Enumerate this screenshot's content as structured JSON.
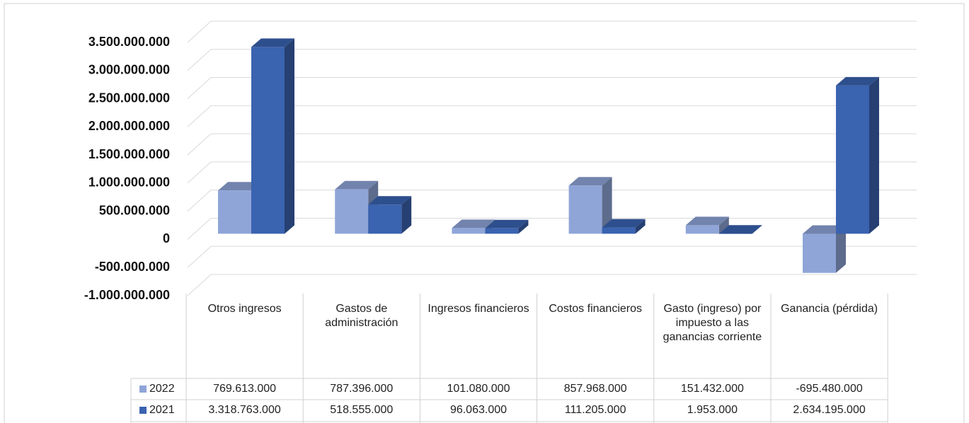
{
  "chart_data": {
    "type": "bar3d",
    "categories": [
      "Otros ingresos",
      "Gastos de administración",
      "Ingresos financieros",
      "Costos financieros",
      "Gasto (ingreso) por impuesto a las ganancias corriente",
      "Ganancia (pérdida)"
    ],
    "series": [
      {
        "name": "2022",
        "color": "#8fa5d8",
        "values": [
          769613000,
          787396000,
          101080000,
          857968000,
          151432000,
          -695480000
        ],
        "value_labels": [
          "769.613.000",
          "787.396.000",
          "101.080.000",
          "857.968.000",
          "151.432.000",
          "-695.480.000"
        ]
      },
      {
        "name": "2021",
        "color": "#3a63b0",
        "values": [
          3318763000,
          518555000,
          96063000,
          111205000,
          1953000,
          2634195000
        ],
        "value_labels": [
          "3.318.763.000",
          "518.555.000",
          "96.063.000",
          "111.205.000",
          "1.953.000",
          "2.634.195.000"
        ]
      }
    ],
    "ylim": [
      -1000000000,
      3500000000
    ],
    "yticks": [
      {
        "value": -1000000000,
        "label": "-1.000.000.000"
      },
      {
        "value": -500000000,
        "label": "-500.000.000"
      },
      0,
      {
        "value": 500000000,
        "label": "500.000.000"
      },
      {
        "value": 1000000000,
        "label": "1.000.000.000"
      },
      {
        "value": 1500000000,
        "label": "1.500.000.000"
      },
      {
        "value": 2000000000,
        "label": "2.000.000.000"
      },
      {
        "value": 2500000000,
        "label": "2.500.000.000"
      },
      {
        "value": 3000000000,
        "label": "3.000.000.000"
      },
      {
        "value": 3500000000,
        "label": "3.500.000.000"
      }
    ],
    "grid": true,
    "data_table": true
  }
}
